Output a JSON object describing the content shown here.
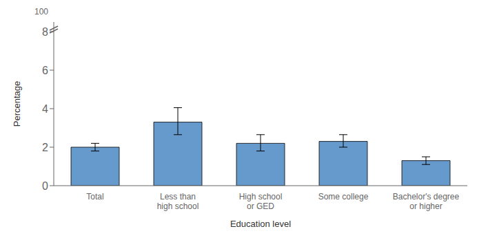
{
  "chart_data": {
    "type": "bar",
    "categories": [
      "Total",
      "Less than\nhigh school",
      "High school\nor GED",
      "Some college",
      "Bachelor's degree\nor higher"
    ],
    "values": [
      2.0,
      3.3,
      2.2,
      2.3,
      1.3
    ],
    "errors_upper": [
      0.2,
      0.75,
      0.45,
      0.35,
      0.2
    ],
    "errors_lower": [
      0.2,
      0.65,
      0.4,
      0.3,
      0.2
    ],
    "color": "#6699cc",
    "xlabel": "Education level",
    "ylabel": "Percentage",
    "ylim": [
      0,
      8.5
    ],
    "yticks": [
      0,
      2,
      4,
      6,
      8
    ],
    "annotations": [
      "100"
    ]
  }
}
